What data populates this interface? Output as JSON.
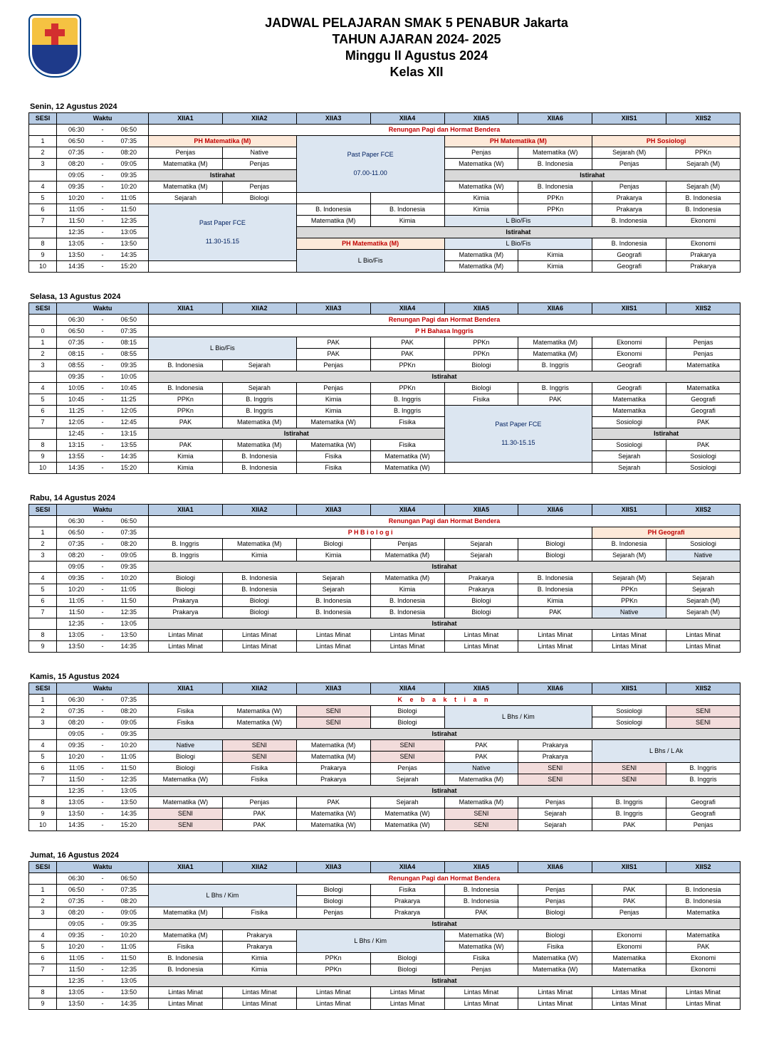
{
  "header": {
    "line1": "JADWAL PELAJARAN SMAK 5 PENABUR Jakarta",
    "line2": "TAHUN AJARAN 2024- 2025",
    "line3": "Minggu II Agustus 2024",
    "line4": "Kelas XII"
  },
  "columns": [
    "SESI",
    "Waktu",
    "XIIA1",
    "XIIA2",
    "XIIA3",
    "XIIA4",
    "XIIA5",
    "XIIA6",
    "XIIS1",
    "XIIS2"
  ],
  "labels": {
    "renungan": "Renungan Pagi dan Hormat Bendera",
    "istirahat": "Istirahat",
    "kebaktian": "K e b a k t i a n"
  },
  "days": {
    "mon": {
      "title": "Senin, 12 Agustus 2024",
      "rows": [
        {
          "s": "",
          "t": [
            "06:30",
            "06:50"
          ]
        },
        {
          "s": "1",
          "t": [
            "06:50",
            "07:35"
          ],
          "ph1": "PH Matematika (M)",
          "ph2": "PH Matematika (M)",
          "ph3": "PH Sosiologi"
        },
        {
          "s": "2",
          "t": [
            "07:35",
            "08:20"
          ],
          "a1": "Penjas",
          "a2": "Native",
          "a5": "Penjas",
          "a6": "Matematika (W)",
          "s1": "Sejarah (M)",
          "s2": "PPKn"
        },
        {
          "s": "3",
          "t": [
            "08:20",
            "09:05"
          ],
          "a1": "Matematika (M)",
          "a2": "Penjas",
          "pp": "Past Paper FCE",
          "pptime": "07.00-11.00",
          "a5": "Matematika (W)",
          "a6": "B. Indonesia",
          "s1": "Penjas",
          "s2": "Sejarah (M)"
        },
        {
          "s": "",
          "t": [
            "09:05",
            "09:35"
          ]
        },
        {
          "s": "4",
          "t": [
            "09:35",
            "10:20"
          ],
          "a1": "Matematika (M)",
          "a2": "Penjas",
          "a5": "Matematika (W)",
          "a6": "B. Indonesia",
          "s1": "Penjas",
          "s2": "Sejarah (M)"
        },
        {
          "s": "5",
          "t": [
            "10:20",
            "11:05"
          ],
          "a1": "Sejarah",
          "a2": "Biologi",
          "a5": "Kimia",
          "a6": "PPKn",
          "s1": "Prakarya",
          "s2": "B. Indonesia"
        },
        {
          "s": "6",
          "t": [
            "11:05",
            "11:50"
          ],
          "a3": "B. Indonesia",
          "a4": "B. Indonesia",
          "a5": "Kimia",
          "a6": "PPKn",
          "s1": "Prakarya",
          "s2": "B. Indonesia"
        },
        {
          "s": "7",
          "t": [
            "11:50",
            "12:35"
          ],
          "pp": "Past Paper FCE",
          "pptime": "11.30-15.15",
          "a3": "Matematika (M)",
          "a4": "Kimia",
          "bio": "L Bio/Fis",
          "s1": "B. Indonesia",
          "s2": "Ekonomi"
        },
        {
          "s": "",
          "t": [
            "12:35",
            "13:05"
          ]
        },
        {
          "s": "8",
          "t": [
            "13:05",
            "13:50"
          ],
          "ph": "PH Matematika (M)",
          "bio": "L Bio/Fis",
          "s1": "B. Indonesia",
          "s2": "Ekonomi"
        },
        {
          "s": "9",
          "t": [
            "13:50",
            "14:35"
          ],
          "bio": "L Bio/Fis",
          "a5": "Matematika (M)",
          "a6": "Kimia",
          "s1": "Geografi",
          "s2": "Prakarya"
        },
        {
          "s": "10",
          "t": [
            "14:35",
            "15:20"
          ],
          "a5": "Matematika (M)",
          "a6": "Kimia",
          "s1": "Geografi",
          "s2": "Prakarya"
        }
      ]
    },
    "tue": {
      "title": "Selasa, 13 Agustus 2024",
      "rows": [
        {
          "s": "",
          "t": [
            "06:30",
            "06:50"
          ]
        },
        {
          "s": "0",
          "t": [
            "06:50",
            "07:35"
          ],
          "ph": "P H   Bahasa Inggris"
        },
        {
          "s": "1",
          "t": [
            "07:35",
            "08:15"
          ],
          "bio": "L Bio/Fis",
          "a3": "PAK",
          "a4": "PAK",
          "a5": "PPKn",
          "a6": "Matematika (M)",
          "s1": "Ekonomi",
          "s2": "Penjas"
        },
        {
          "s": "2",
          "t": [
            "08:15",
            "08:55"
          ],
          "a3": "PAK",
          "a4": "PAK",
          "a5": "PPKn",
          "a6": "Matematika (M)",
          "s1": "Ekonomi",
          "s2": "Penjas"
        },
        {
          "s": "3",
          "t": [
            "08:55",
            "09:35"
          ],
          "a1": "B. Indonesia",
          "a2": "Sejarah",
          "a3": "Penjas",
          "a4": "PPKn",
          "a5": "Biologi",
          "a6": "B. Inggris",
          "s1": "Geografi",
          "s2": "Matematika"
        },
        {
          "s": "",
          "t": [
            "09:35",
            "10:05"
          ]
        },
        {
          "s": "4",
          "t": [
            "10:05",
            "10:45"
          ],
          "a1": "B. Indonesia",
          "a2": "Sejarah",
          "a3": "Penjas",
          "a4": "PPKn",
          "a5": "Biologi",
          "a6": "B. Inggris",
          "s1": "Geografi",
          "s2": "Matematika"
        },
        {
          "s": "5",
          "t": [
            "10:45",
            "11:25"
          ],
          "a1": "PPKn",
          "a2": "B. Inggris",
          "a3": "Kimia",
          "a4": "B. Inggris",
          "a5": "Fisika",
          "a6": "PAK",
          "s1": "Matematika",
          "s2": "Geografi"
        },
        {
          "s": "6",
          "t": [
            "11:25",
            "12:05"
          ],
          "a1": "PPKn",
          "a2": "B. Inggris",
          "a3": "Kimia",
          "a4": "B. Inggris",
          "s1": "Matematika",
          "s2": "Geografi"
        },
        {
          "s": "7",
          "t": [
            "12:05",
            "12:45"
          ],
          "a1": "PAK",
          "a2": "Matematika (M)",
          "a3": "Matematika (W)",
          "a4": "Fisika",
          "pp": "Past Paper FCE",
          "pptime": "11.30-15.15",
          "s1": "Sosiologi",
          "s2": "PAK"
        },
        {
          "s": "",
          "t": [
            "12:45",
            "13:15"
          ]
        },
        {
          "s": "8",
          "t": [
            "13:15",
            "13:55"
          ],
          "a1": "PAK",
          "a2": "Matematika (M)",
          "a3": "Matematika (W)",
          "a4": "Fisika",
          "s1": "Sosiologi",
          "s2": "PAK"
        },
        {
          "s": "9",
          "t": [
            "13:55",
            "14:35"
          ],
          "a1": "Kimia",
          "a2": "B. Indonesia",
          "a3": "Fisika",
          "a4": "Matematika (W)",
          "s1": "Sejarah",
          "s2": "Sosiologi"
        },
        {
          "s": "10",
          "t": [
            "14:35",
            "15:20"
          ],
          "a1": "Kimia",
          "a2": "B. Indonesia",
          "a3": "Fisika",
          "a4": "Matematika (W)",
          "s1": "Sejarah",
          "s2": "Sosiologi"
        }
      ]
    },
    "wed": {
      "title": "Rabu, 14 Agustus 2024",
      "rows": [
        {
          "s": "",
          "t": [
            "06:30",
            "06:50"
          ]
        },
        {
          "s": "1",
          "t": [
            "06:50",
            "07:35"
          ],
          "ph1": "P H   B i o l o g i",
          "ph2": "PH Geografi"
        },
        {
          "s": "2",
          "t": [
            "07:35",
            "08:20"
          ],
          "a1": "B. Inggris",
          "a2": "Matematika (M)",
          "a3": "Biologi",
          "a4": "Penjas",
          "a5": "Sejarah",
          "a6": "Biologi",
          "s1": "B. Indonesia",
          "s2": "Sosiologi"
        },
        {
          "s": "3",
          "t": [
            "08:20",
            "09:05"
          ],
          "a1": "B. Inggris",
          "a2": "Kimia",
          "a3": "Kimia",
          "a4": "Matematika (M)",
          "a5": "Sejarah",
          "a6": "Biologi",
          "s1": "Sejarah (M)",
          "s2": "Native"
        },
        {
          "s": "",
          "t": [
            "09:05",
            "09:35"
          ]
        },
        {
          "s": "4",
          "t": [
            "09:35",
            "10:20"
          ],
          "a1": "Biologi",
          "a2": "B. Indonesia",
          "a3": "Sejarah",
          "a4": "Matematika (M)",
          "a5": "Prakarya",
          "a6": "B. Indonesia",
          "s1": "Sejarah (M)",
          "s2": "Sejarah"
        },
        {
          "s": "5",
          "t": [
            "10:20",
            "11:05"
          ],
          "a1": "Biologi",
          "a2": "B. Indonesia",
          "a3": "Sejarah",
          "a4": "Kimia",
          "a5": "Prakarya",
          "a6": "B. Indonesia",
          "s1": "PPKn",
          "s2": "Sejarah"
        },
        {
          "s": "6",
          "t": [
            "11:05",
            "11:50"
          ],
          "a1": "Prakarya",
          "a2": "Biologi",
          "a3": "B. Indonesia",
          "a4": "B. Indonesia",
          "a5": "Biologi",
          "a6": "Kimia",
          "s1": "PPKn",
          "s2": "Sejarah (M)"
        },
        {
          "s": "7",
          "t": [
            "11:50",
            "12:35"
          ],
          "a1": "Prakarya",
          "a2": "Biologi",
          "a3": "B. Indonesia",
          "a4": "B. Indonesia",
          "a5": "Biologi",
          "a6": "PAK",
          "s1": "Native",
          "s2": "Sejarah (M)"
        },
        {
          "s": "",
          "t": [
            "12:35",
            "13:05"
          ]
        },
        {
          "s": "8",
          "t": [
            "13:05",
            "13:50"
          ],
          "lm": "Lintas Minat"
        },
        {
          "s": "9",
          "t": [
            "13:50",
            "14:35"
          ],
          "lm": "Lintas Minat"
        }
      ]
    },
    "thu": {
      "title": "Kamis, 15 Agustus 2024",
      "rows": [
        {
          "s": "1",
          "t": [
            "06:30",
            "07:35"
          ]
        },
        {
          "s": "2",
          "t": [
            "07:35",
            "08:20"
          ],
          "a1": "Fisika",
          "a2": "Matematika (W)",
          "a3": "SENI",
          "a4": "Biologi",
          "bio": "L Bhs / Kim",
          "s1": "Sosiologi",
          "s2": "SENI"
        },
        {
          "s": "3",
          "t": [
            "08:20",
            "09:05"
          ],
          "a1": "Fisika",
          "a2": "Matematika (W)",
          "a3": "SENI",
          "a4": "Biologi",
          "s1": "Sosiologi",
          "s2": "SENI"
        },
        {
          "s": "",
          "t": [
            "09:05",
            "09:35"
          ]
        },
        {
          "s": "4",
          "t": [
            "09:35",
            "10:20"
          ],
          "a1": "Native",
          "a2": "SENI",
          "a3": "Matematika (M)",
          "a4": "SENI",
          "a5": "PAK",
          "a6": "Prakarya",
          "bio": "L Bhs / L Ak"
        },
        {
          "s": "5",
          "t": [
            "10:20",
            "11:05"
          ],
          "a1": "Biologi",
          "a2": "SENI",
          "a3": "Matematika (M)",
          "a4": "SENI",
          "a5": "PAK",
          "a6": "Prakarya"
        },
        {
          "s": "6",
          "t": [
            "11:05",
            "11:50"
          ],
          "a1": "Biologi",
          "a2": "Fisika",
          "a3": "Prakarya",
          "a4": "Penjas",
          "a5": "Native",
          "a6": "SENI",
          "s1": "SENI",
          "s2": "B. Inggris"
        },
        {
          "s": "7",
          "t": [
            "11:50",
            "12:35"
          ],
          "a1": "Matematika (W)",
          "a2": "Fisika",
          "a3": "Prakarya",
          "a4": "Sejarah",
          "a5": "Matematika (M)",
          "a6": "SENI",
          "s1": "SENI",
          "s2": "B. Inggris"
        },
        {
          "s": "",
          "t": [
            "12:35",
            "13:05"
          ]
        },
        {
          "s": "8",
          "t": [
            "13:05",
            "13:50"
          ],
          "a1": "Matematika (W)",
          "a2": "Penjas",
          "a3": "PAK",
          "a4": "Sejarah",
          "a5": "Matematika (M)",
          "a6": "Penjas",
          "s1": "B. Inggris",
          "s2": "Geografi"
        },
        {
          "s": "9",
          "t": [
            "13:50",
            "14:35"
          ],
          "a1": "SENI",
          "a2": "PAK",
          "a3": "Matematika (W)",
          "a4": "Matematika (W)",
          "a5": "SENI",
          "a6": "Sejarah",
          "s1": "B. Inggris",
          "s2": "Geografi"
        },
        {
          "s": "10",
          "t": [
            "14:35",
            "15:20"
          ],
          "a1": "SENI",
          "a2": "PAK",
          "a3": "Matematika (W)",
          "a4": "Matematika (W)",
          "a5": "SENI",
          "a6": "Sejarah",
          "s1": "PAK",
          "s2": "Penjas"
        }
      ]
    },
    "fri": {
      "title": "Jumat, 16 Agustus 2024",
      "rows": [
        {
          "s": "",
          "t": [
            "06:30",
            "06:50"
          ]
        },
        {
          "s": "1",
          "t": [
            "06:50",
            "07:35"
          ],
          "bio": "L Bhs / Kim",
          "a3": "Biologi",
          "a4": "Fisika",
          "a5": "B. Indonesia",
          "a6": "Penjas",
          "s1": "PAK",
          "s2": "B. Indonesia"
        },
        {
          "s": "2",
          "t": [
            "07:35",
            "08:20"
          ],
          "a3": "Biologi",
          "a4": "Prakarya",
          "a5": "B. Indonesia",
          "a6": "Penjas",
          "s1": "PAK",
          "s2": "B. Indonesia"
        },
        {
          "s": "3",
          "t": [
            "08:20",
            "09:05"
          ],
          "a1": "Matematika (M)",
          "a2": "Fisika",
          "a3": "Penjas",
          "a4": "Prakarya",
          "a5": "PAK",
          "a6": "Biologi",
          "s1": "Penjas",
          "s2": "Matematika"
        },
        {
          "s": "",
          "t": [
            "09:05",
            "09:35"
          ]
        },
        {
          "s": "4",
          "t": [
            "09:35",
            "10:20"
          ],
          "a1": "Matematika (M)",
          "a2": "Prakarya",
          "bio2": "L Bhs / Kim",
          "a5": "Matematika (W)",
          "a6": "Biologi",
          "s1": "Ekonomi",
          "s2": "Matematika"
        },
        {
          "s": "5",
          "t": [
            "10:20",
            "11:05"
          ],
          "a1": "Fisika",
          "a2": "Prakarya",
          "a5": "Matematika (W)",
          "a6": "Fisika",
          "s1": "Ekonomi",
          "s2": "PAK"
        },
        {
          "s": "6",
          "t": [
            "11:05",
            "11:50"
          ],
          "a1": "B. Indonesia",
          "a2": "Kimia",
          "a3": "PPKn",
          "a4": "Biologi",
          "a5": "Fisika",
          "a6": "Matematika (W)",
          "s1": "Matematika",
          "s2": "Ekonomi"
        },
        {
          "s": "7",
          "t": [
            "11:50",
            "12:35"
          ],
          "a1": "B. Indonesia",
          "a2": "Kimia",
          "a3": "PPKn",
          "a4": "Biologi",
          "a5": "Penjas",
          "a6": "Matematika (W)",
          "s1": "Matematika",
          "s2": "Ekonomi"
        },
        {
          "s": "",
          "t": [
            "12:35",
            "13:05"
          ]
        },
        {
          "s": "8",
          "t": [
            "13:05",
            "13:50"
          ],
          "lm": "Lintas Minat"
        },
        {
          "s": "9",
          "t": [
            "13:50",
            "14:35"
          ],
          "lm": "Lintas Minat"
        }
      ]
    }
  }
}
